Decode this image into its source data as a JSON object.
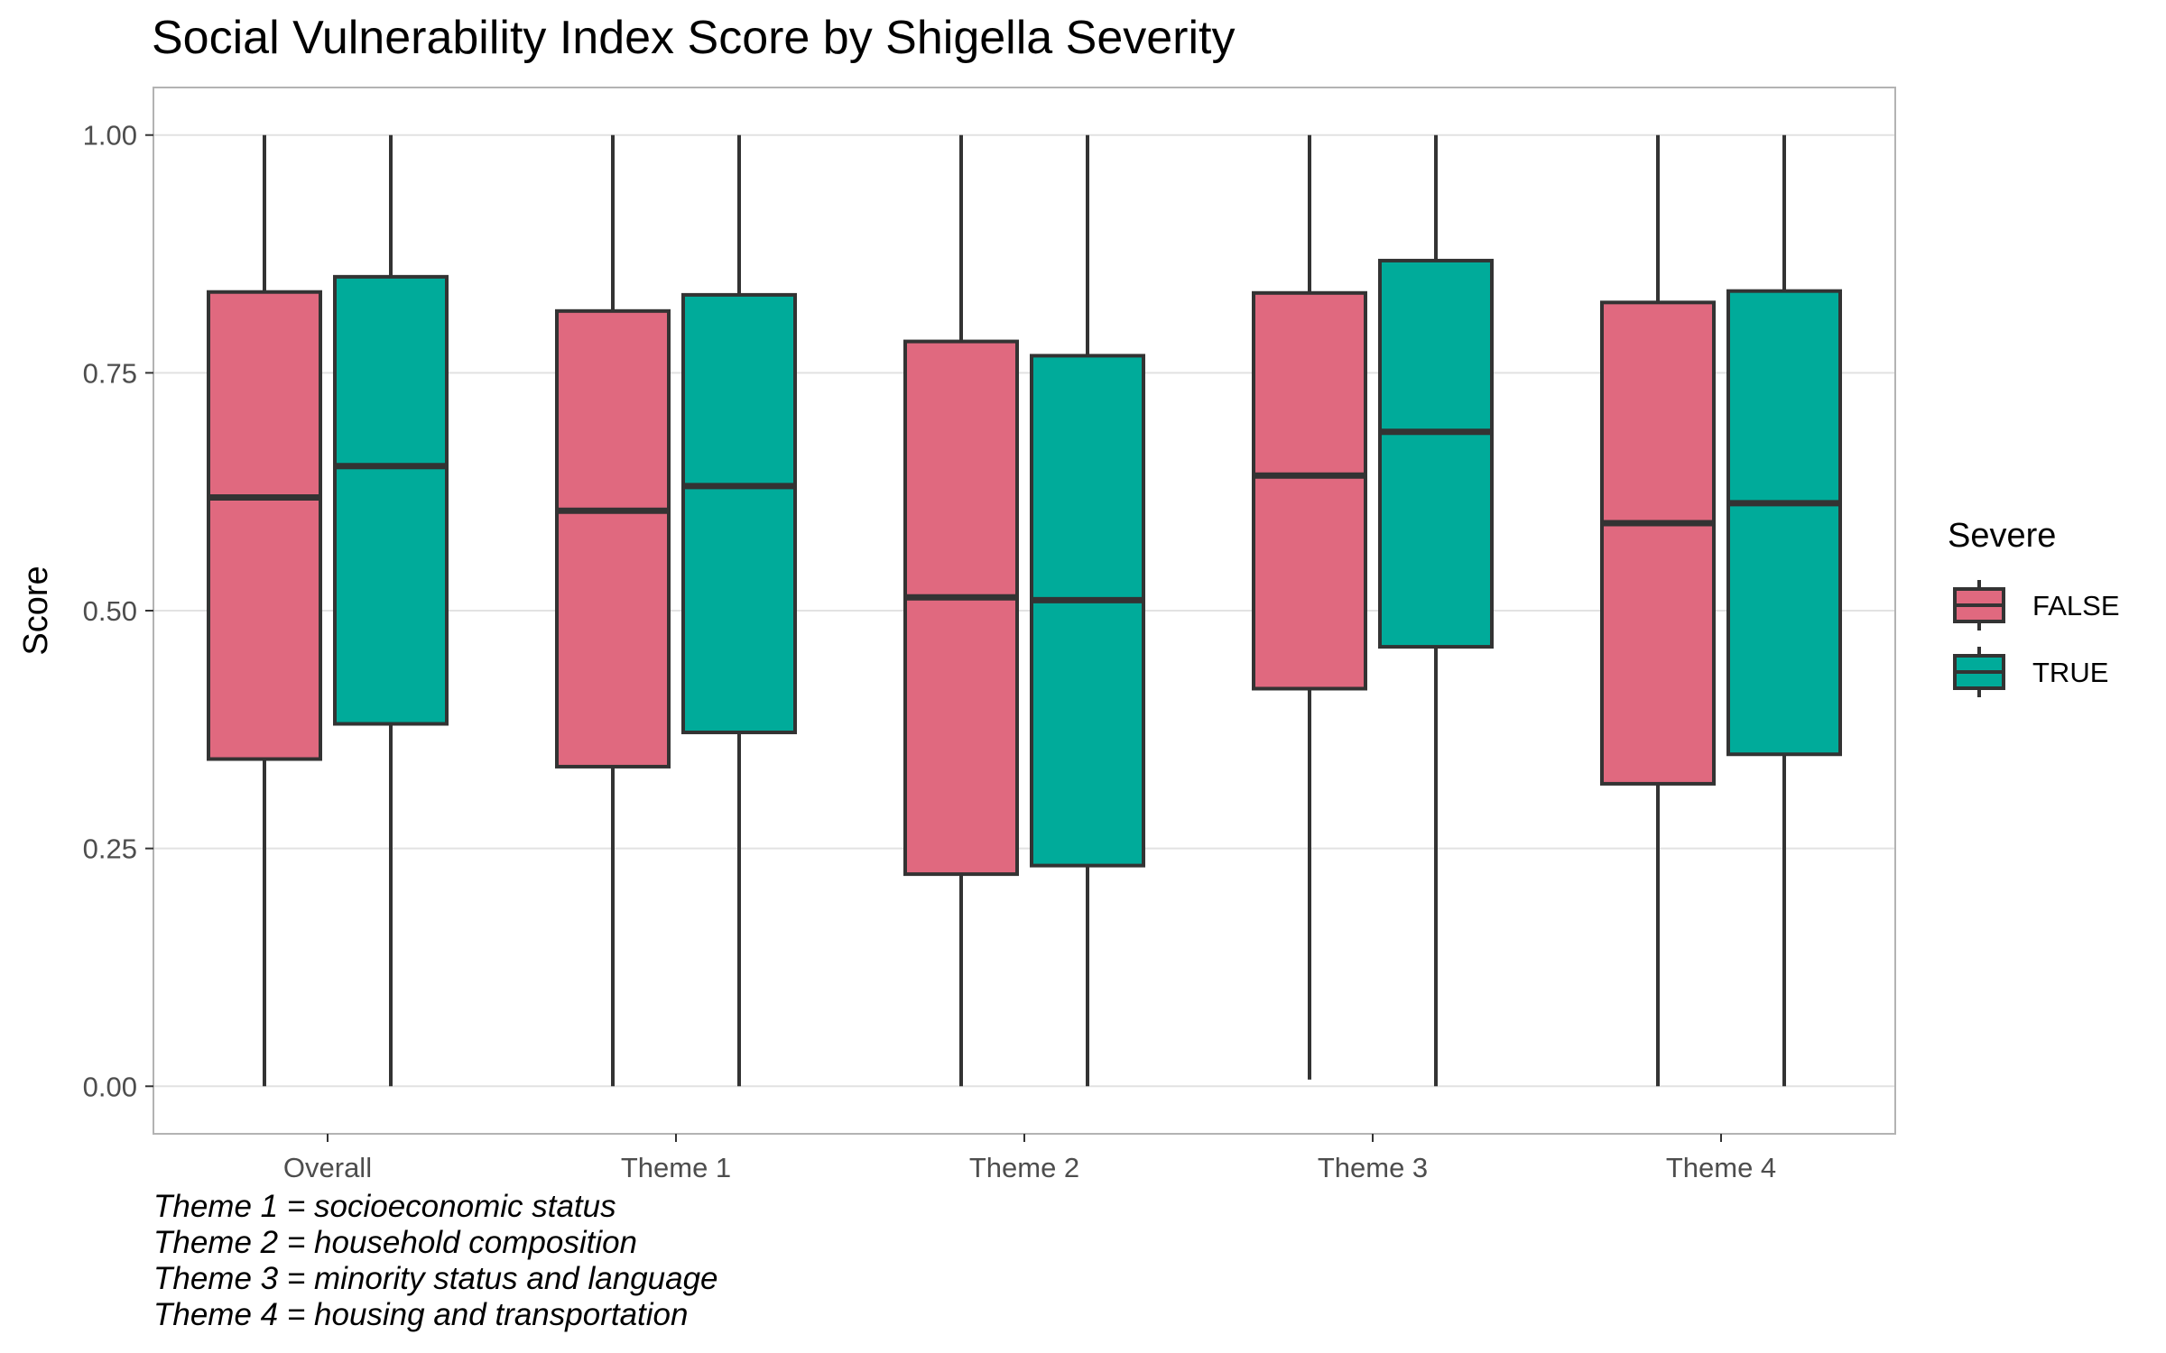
{
  "chart_data": {
    "type": "boxplot",
    "title": "Social Vulnerability Index Score by Shigella Severity",
    "xlabel": "",
    "ylabel": "Score",
    "ylim": [
      -0.05,
      1.05
    ],
    "yticks": [
      0.0,
      0.25,
      0.5,
      0.75,
      1.0
    ],
    "ytick_labels": [
      "0.00",
      "0.25",
      "0.50",
      "0.75",
      "1.00"
    ],
    "categories": [
      "Overall",
      "Theme 1",
      "Theme 2",
      "Theme 3",
      "Theme 4"
    ],
    "grid": true,
    "legend_title": "Severe",
    "legend_position": "right",
    "series": [
      {
        "name": "FALSE",
        "color": "#E0697F",
        "boxes": [
          {
            "min": 0.0,
            "q1": 0.344,
            "median": 0.619,
            "q3": 0.835,
            "max": 1.0
          },
          {
            "min": 0.0,
            "q1": 0.336,
            "median": 0.605,
            "q3": 0.815,
            "max": 1.0
          },
          {
            "min": 0.0,
            "q1": 0.223,
            "median": 0.514,
            "q3": 0.783,
            "max": 1.0
          },
          {
            "min": 0.007,
            "q1": 0.418,
            "median": 0.642,
            "q3": 0.834,
            "max": 1.0
          },
          {
            "min": 0.0,
            "q1": 0.318,
            "median": 0.592,
            "q3": 0.824,
            "max": 1.0
          }
        ]
      },
      {
        "name": "TRUE",
        "color": "#00AB9A",
        "boxes": [
          {
            "min": 0.0,
            "q1": 0.381,
            "median": 0.652,
            "q3": 0.851,
            "max": 1.0
          },
          {
            "min": 0.0,
            "q1": 0.372,
            "median": 0.631,
            "q3": 0.832,
            "max": 1.0
          },
          {
            "min": 0.0,
            "q1": 0.232,
            "median": 0.511,
            "q3": 0.768,
            "max": 1.0
          },
          {
            "min": 0.0,
            "q1": 0.462,
            "median": 0.688,
            "q3": 0.868,
            "max": 1.0
          },
          {
            "min": 0.0,
            "q1": 0.349,
            "median": 0.613,
            "q3": 0.836,
            "max": 1.0
          }
        ]
      }
    ]
  },
  "caption": [
    "Theme 1 = socioeconomic status",
    "Theme 2 = household composition",
    "Theme 3 = minority status and language",
    "Theme 4 = housing and transportation"
  ]
}
